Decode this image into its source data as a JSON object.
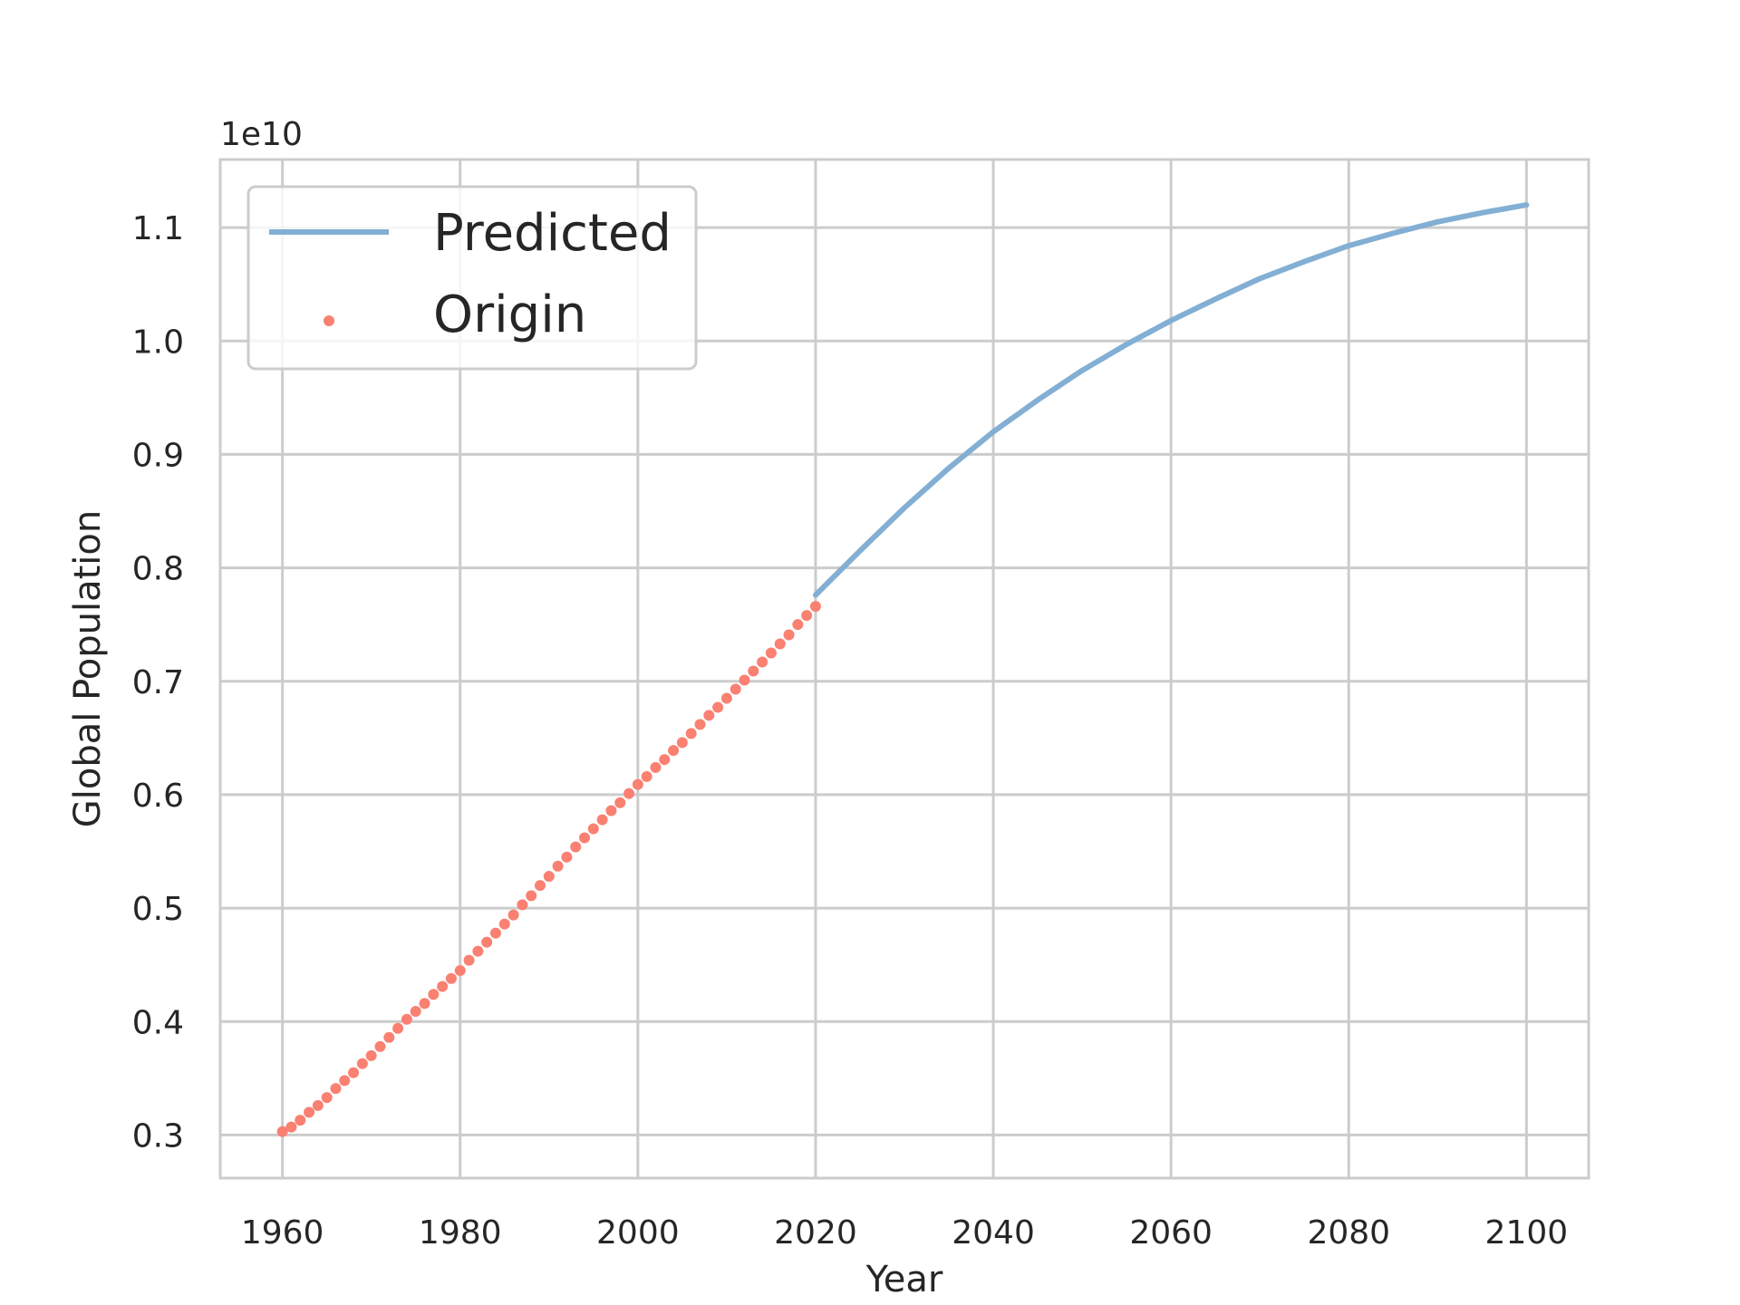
{
  "chart_data": {
    "type": "line",
    "xlabel": "Year",
    "ylabel": "Global Population",
    "offset_text": "1e10",
    "xlim": [
      1953,
      2107
    ],
    "ylim": [
      2620000000.0,
      11600000000.0
    ],
    "x_ticks": [
      1960,
      1980,
      2000,
      2020,
      2040,
      2060,
      2080,
      2100
    ],
    "x_tick_labels": [
      "1960",
      "1980",
      "2000",
      "2020",
      "2040",
      "2060",
      "2080",
      "2100"
    ],
    "y_ticks": [
      3000000000.0,
      4000000000.0,
      5000000000.0,
      6000000000.0,
      7000000000.0,
      8000000000.0,
      9000000000.0,
      10000000000.0,
      11000000000.0
    ],
    "y_tick_labels": [
      "0.3",
      "0.4",
      "0.5",
      "0.6",
      "0.7",
      "0.8",
      "0.9",
      "1.0",
      "1.1"
    ],
    "grid": true,
    "legend_position": "top-left",
    "colors": {
      "predicted": "#82afd3",
      "origin": "#fa8072",
      "grid": "#cccccc",
      "text": "#262626"
    },
    "series": [
      {
        "name": "Predicted",
        "kind": "line",
        "x": [
          2020,
          2025,
          2030,
          2035,
          2040,
          2045,
          2050,
          2055,
          2060,
          2065,
          2070,
          2075,
          2080,
          2085,
          2090,
          2095,
          2100
        ],
        "y": [
          7760000000.0,
          8150000000.0,
          8530000000.0,
          8880000000.0,
          9200000000.0,
          9480000000.0,
          9740000000.0,
          9970000000.0,
          10180000000.0,
          10370000000.0,
          10550000000.0,
          10700000000.0,
          10840000000.0,
          10950000000.0,
          11050000000.0,
          11130000000.0,
          11200000000.0
        ]
      },
      {
        "name": "Origin",
        "kind": "scatter",
        "x": [
          1960,
          1961,
          1962,
          1963,
          1964,
          1965,
          1966,
          1967,
          1968,
          1969,
          1970,
          1971,
          1972,
          1973,
          1974,
          1975,
          1976,
          1977,
          1978,
          1979,
          1980,
          1981,
          1982,
          1983,
          1984,
          1985,
          1986,
          1987,
          1988,
          1989,
          1990,
          1991,
          1992,
          1993,
          1994,
          1995,
          1996,
          1997,
          1998,
          1999,
          2000,
          2001,
          2002,
          2003,
          2004,
          2005,
          2006,
          2007,
          2008,
          2009,
          2010,
          2011,
          2012,
          2013,
          2014,
          2015,
          2016,
          2017,
          2018,
          2019,
          2020
        ],
        "y": [
          3030000000.0,
          3070000000.0,
          3130000000.0,
          3200000000.0,
          3260000000.0,
          3330000000.0,
          3410000000.0,
          3480000000.0,
          3550000000.0,
          3630000000.0,
          3700000000.0,
          3780000000.0,
          3860000000.0,
          3940000000.0,
          4020000000.0,
          4090000000.0,
          4160000000.0,
          4240000000.0,
          4310000000.0,
          4380000000.0,
          4450000000.0,
          4540000000.0,
          4620000000.0,
          4700000000.0,
          4780000000.0,
          4860000000.0,
          4940000000.0,
          5030000000.0,
          5110000000.0,
          5200000000.0,
          5280000000.0,
          5370000000.0,
          5450000000.0,
          5540000000.0,
          5620000000.0,
          5700000000.0,
          5780000000.0,
          5860000000.0,
          5930000000.0,
          6010000000.0,
          6090000000.0,
          6160000000.0,
          6240000000.0,
          6310000000.0,
          6390000000.0,
          6460000000.0,
          6540000000.0,
          6620000000.0,
          6700000000.0,
          6770000000.0,
          6850000000.0,
          6930000000.0,
          7010000000.0,
          7090000000.0,
          7170000000.0,
          7250000000.0,
          7330000000.0,
          7410000000.0,
          7500000000.0,
          7580000000.0,
          7660000000.0
        ]
      }
    ]
  }
}
